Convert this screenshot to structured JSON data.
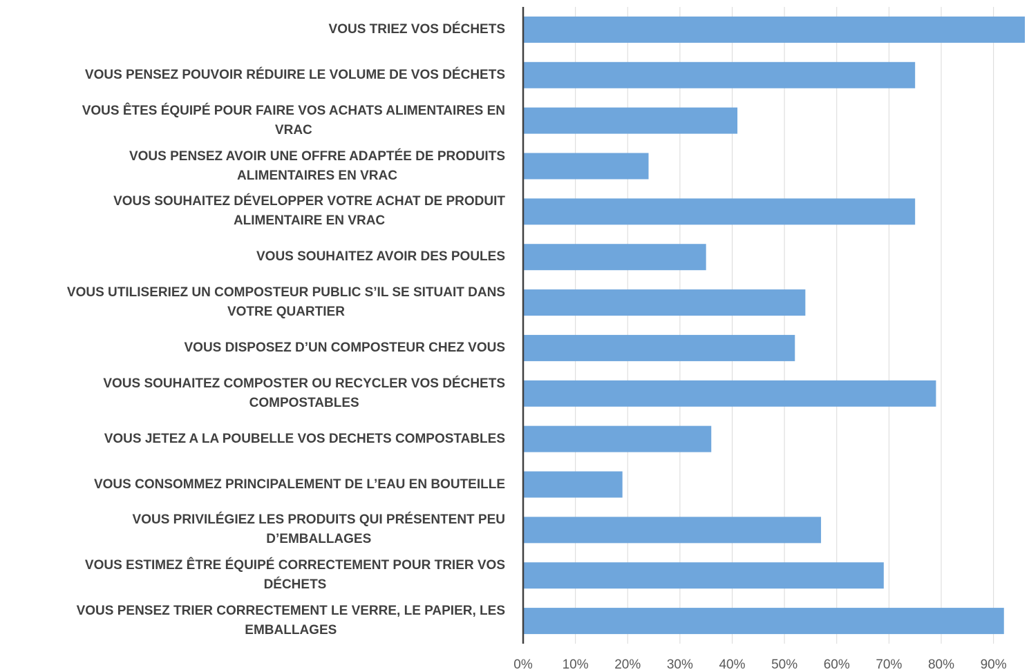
{
  "chart_data": {
    "type": "barh",
    "categories": [
      "VOUS TRIEZ VOS DÉCHETS",
      "VOUS PENSEZ POUVOIR RÉDUIRE LE VOLUME DE VOS DÉCHETS",
      "VOUS ÊTES ÉQUIPÉ POUR FAIRE VOS ACHATS ALIMENTAIRES EN\nVRAC",
      "VOUS PENSEZ AVOIR UNE OFFRE ADAPTÉE DE PRODUITS\nALIMENTAIRES EN VRAC",
      "VOUS SOUHAITEZ DÉVELOPPER VOTRE ACHAT DE PRODUIT\nALIMENTAIRE EN VRAC",
      "VOUS SOUHAITEZ AVOIR DES POULES",
      "VOUS UTILISERIEZ UN COMPOSTEUR PUBLIC S’IL SE SITUAIT DANS\nVOTRE QUARTIER",
      "VOUS DISPOSEZ D’UN COMPOSTEUR CHEZ VOUS",
      "VOUS SOUHAITEZ COMPOSTER OU RECYCLER VOS DÉCHETS\nCOMPOSTABLES",
      "VOUS JETEZ A LA POUBELLE VOS DECHETS COMPOSTABLES",
      "VOUS CONSOMMEZ PRINCIPALEMENT DE L’EAU EN BOUTEILLE",
      "VOUS PRIVILÉGIEZ LES PRODUITS QUI PRÉSENTENT PEU\nD’EMBALLAGES",
      "VOUS ESTIMEZ ÊTRE ÉQUIPÉ CORRECTEMENT POUR TRIER VOS\nDÉCHETS",
      "VOUS PENSEZ TRIER CORRECTEMENT LE VERRE, LE PAPIER, LES\nEMBALLAGES"
    ],
    "values": [
      96,
      75,
      41,
      24,
      75,
      35,
      54,
      52,
      79,
      36,
      19,
      57,
      69,
      92
    ],
    "color": "#6fa6dc",
    "xlim": [
      0,
      96
    ],
    "xticks": [
      {
        "value": 0,
        "label": "0%"
      },
      {
        "value": 10,
        "label": "10%"
      },
      {
        "value": 20,
        "label": "20%"
      },
      {
        "value": 30,
        "label": "30%"
      },
      {
        "value": 40,
        "label": "40%"
      },
      {
        "value": 50,
        "label": "50%"
      },
      {
        "value": 60,
        "label": "60%"
      },
      {
        "value": 70,
        "label": "70%"
      },
      {
        "value": 80,
        "label": "80%"
      },
      {
        "value": 90,
        "label": "90%"
      }
    ],
    "grid": true
  }
}
